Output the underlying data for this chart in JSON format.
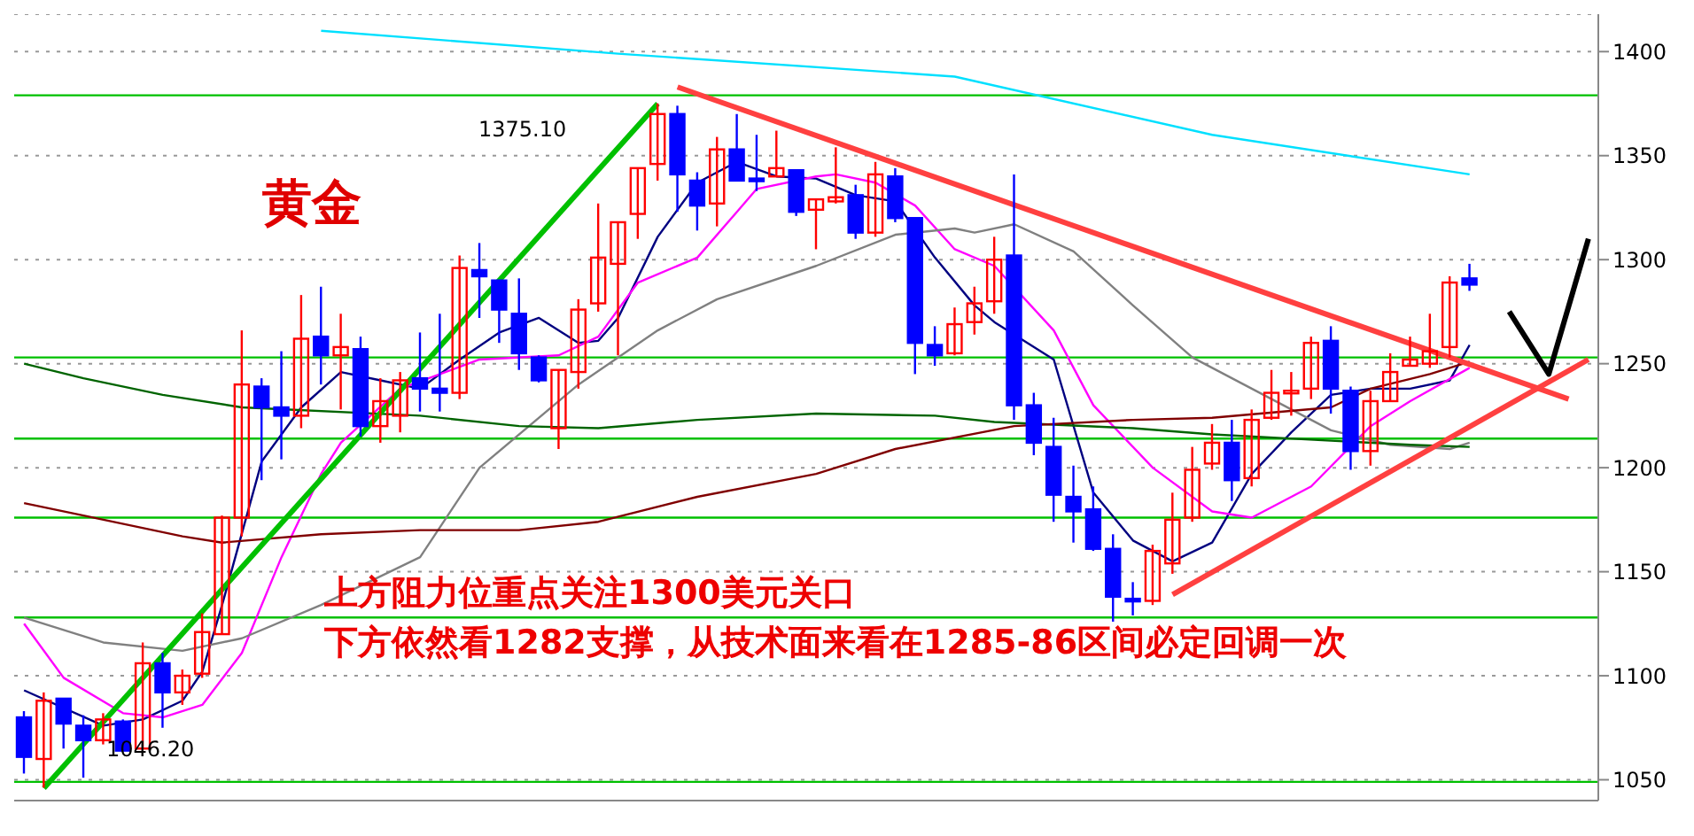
{
  "chart_data": {
    "type": "candlestick",
    "title": "黄金",
    "tick_labels": "y",
    "grid": "y",
    "marker": "none",
    "categories": [
      null,
      null,
      null,
      null,
      null,
      null,
      null,
      null,
      null,
      null,
      null,
      null,
      null,
      null,
      null,
      null,
      null,
      null,
      null,
      null,
      null,
      null,
      null,
      null,
      null,
      null,
      null,
      null,
      null,
      null,
      null,
      null,
      null,
      null,
      null,
      null,
      null,
      null,
      null,
      null,
      null,
      null,
      null,
      null,
      null,
      null,
      null,
      null,
      null,
      null,
      null,
      null,
      null,
      null,
      null,
      null,
      null,
      null,
      null,
      null,
      null,
      null,
      null,
      null,
      null,
      null,
      null,
      null,
      null,
      null,
      null,
      null,
      null,
      null,
      null,
      null,
      null,
      null,
      null,
      null
    ],
    "colors": [
      "#0000ff",
      "#ff0000",
      "#0000ff",
      "#0000ff",
      "#ff0000",
      "#0000ff",
      "#ff0000",
      "#0000ff",
      "#ff0000",
      "#ff0000",
      "#ff0000",
      "#ff0000",
      "#0000ff",
      "#0000ff",
      "#ff0000",
      "#0000ff",
      "#ff0000",
      "#0000ff",
      "#ff0000",
      "#ff0000",
      "#0000ff",
      "#0000ff",
      "#ff0000",
      "#0000ff",
      "#0000ff",
      "#0000ff",
      "#0000ff",
      "#ff0000",
      "#ff0000",
      "#ff0000",
      "#ff0000",
      "#ff0000",
      "#ff0000",
      "#0000ff",
      "#0000ff",
      "#ff0000",
      "#0000ff",
      "#0000ff",
      "#ff0000",
      "#0000ff",
      "#ff0000",
      "#ff0000",
      "#0000ff",
      "#ff0000",
      "#0000ff",
      "#0000ff",
      "#0000ff",
      "#ff0000",
      "#ff0000",
      "#ff0000",
      "#0000ff",
      "#0000ff",
      "#0000ff",
      "#0000ff",
      "#0000ff",
      "#0000ff",
      "#0000ff",
      "#ff0000",
      "#ff0000",
      "#ff0000",
      "#ff0000",
      "#0000ff",
      "#ff0000",
      "#ff0000",
      "#ff0000",
      "#ff0000",
      "#0000ff",
      "#0000ff",
      "#ff0000",
      "#ff0000",
      "#ff0000",
      "#ff0000",
      "#ff0000",
      "#0000ff",
      null,
      null,
      null,
      null,
      null,
      null
    ],
    "ohlc": [
      [
        1080,
        1083,
        1053,
        1061
      ],
      [
        1060,
        1092,
        1046.2,
        1088
      ],
      [
        1089,
        1089,
        1065,
        1077
      ],
      [
        1076,
        1081,
        1051,
        1069
      ],
      [
        1069,
        1082,
        1067,
        1079
      ],
      [
        1078,
        1079,
        1064,
        1064
      ],
      [
        1065,
        1116,
        1065,
        1106
      ],
      [
        1106,
        1111,
        1075,
        1092
      ],
      [
        1092,
        1103,
        1086,
        1100
      ],
      [
        1101,
        1130,
        1099,
        1121
      ],
      [
        1120,
        1177,
        1120,
        1176
      ],
      [
        1176,
        1266,
        1167,
        1240
      ],
      [
        1239,
        1243,
        1194,
        1229
      ],
      [
        1229,
        1256,
        1204,
        1225
      ],
      [
        1225,
        1283,
        1219,
        1262
      ],
      [
        1263,
        1287,
        1240,
        1254
      ],
      [
        1254,
        1274,
        1228,
        1258
      ],
      [
        1257,
        1263,
        1215,
        1220
      ],
      [
        1220,
        1243,
        1212,
        1232
      ],
      [
        1225,
        1246,
        1217,
        1242
      ],
      [
        1243,
        1265,
        1227,
        1238
      ],
      [
        1238,
        1274,
        1227,
        1236
      ],
      [
        1236,
        1302,
        1233,
        1296
      ],
      [
        1295,
        1308,
        1272,
        1292
      ],
      [
        1290,
        1290,
        1260,
        1276
      ],
      [
        1274,
        1291,
        1247,
        1255
      ],
      [
        1253,
        1254,
        1241,
        1242
      ],
      [
        1219,
        1247,
        1209,
        1247
      ],
      [
        1246,
        1281,
        1238,
        1276
      ],
      [
        1279,
        1327,
        1275,
        1301
      ],
      [
        1298,
        1318,
        1254,
        1318
      ],
      [
        1322,
        1344,
        1310,
        1344
      ],
      [
        1346,
        1375.1,
        1338,
        1370
      ],
      [
        1370,
        1374,
        1323,
        1341
      ],
      [
        1338,
        1342,
        1314,
        1326
      ],
      [
        1327,
        1359,
        1316,
        1353
      ],
      [
        1353,
        1370,
        1338,
        1338
      ],
      [
        1339,
        1360,
        1333,
        1338
      ],
      [
        1340,
        1362,
        1340,
        1344
      ],
      [
        1343,
        1343,
        1321,
        1323
      ],
      [
        1324,
        1329,
        1305,
        1329
      ],
      [
        1328,
        1354,
        1327,
        1330
      ],
      [
        1331,
        1336,
        1310,
        1313
      ],
      [
        1313,
        1347,
        1311,
        1341
      ],
      [
        1340,
        1344,
        1318,
        1320
      ],
      [
        1320,
        1320,
        1245,
        1260
      ],
      [
        1259,
        1268,
        1249,
        1254
      ],
      [
        1255,
        1277,
        1254,
        1269
      ],
      [
        1270,
        1287,
        1264,
        1279
      ],
      [
        1280,
        1311,
        1274,
        1300
      ],
      [
        1302,
        1341,
        1223,
        1230
      ],
      [
        1230,
        1236,
        1206,
        1212
      ],
      [
        1210,
        1224,
        1174,
        1187
      ],
      [
        1186,
        1201,
        1164,
        1179
      ],
      [
        1180,
        1191,
        1160,
        1161
      ],
      [
        1161,
        1168,
        1126,
        1138
      ],
      [
        1137,
        1145,
        1129,
        1136
      ],
      [
        1136,
        1163,
        1134,
        1160
      ],
      [
        1154,
        1188,
        1149,
        1175
      ],
      [
        1176,
        1210,
        1174,
        1199
      ],
      [
        1202,
        1221,
        1199,
        1212
      ],
      [
        1212,
        1223,
        1184,
        1194
      ],
      [
        1195,
        1228,
        1191,
        1223
      ],
      [
        1224,
        1247,
        1223,
        1236
      ],
      [
        1236,
        1246,
        1225,
        1237
      ],
      [
        1238,
        1263,
        1233,
        1260
      ],
      [
        1261,
        1268,
        1226,
        1238
      ],
      [
        1237,
        1239,
        1199,
        1208
      ],
      [
        1208,
        1237,
        1201,
        1232
      ],
      [
        1232,
        1255,
        1232,
        1246
      ],
      [
        1249,
        1263,
        1249,
        1252
      ],
      [
        1250,
        1274,
        1248,
        1256
      ],
      [
        1258,
        1292,
        1253,
        1289
      ],
      [
        1291,
        1298,
        1285,
        1288
      ],
      null,
      null,
      null,
      null,
      null,
      null
    ],
    "series": [
      {
        "type": "line",
        "color": "#000080",
        "values": [
          1093,
          null,
          null,
          null,
          1076,
          null,
          1079,
          null,
          1088,
          1102,
          1134,
          null,
          1203,
          null,
          1229,
          null,
          1246,
          null,
          1242,
          null,
          1238,
          null,
          1252,
          null,
          1265,
          null,
          1272,
          null,
          1260,
          1261,
          1272,
          null,
          1311,
          null,
          1337,
          null,
          1347,
          null,
          1340,
          null,
          1339,
          null,
          1331,
          null,
          1328,
          null,
          1301,
          null,
          1278,
          1270,
          null,
          null,
          1252,
          null,
          1188,
          null,
          1165,
          null,
          1155,
          null,
          1164,
          null,
          1197,
          null,
          1217,
          null,
          1235,
          null,
          1238,
          null,
          1238,
          null,
          1242,
          1259,
          null,
          null,
          null,
          null,
          null,
          null
        ]
      },
      {
        "type": "line",
        "color": "#ff00ff",
        "values": [
          1125,
          null,
          1099,
          null,
          null,
          1082,
          null,
          1080,
          null,
          1086,
          null,
          1111,
          null,
          1157,
          null,
          1197,
          1212,
          null,
          null,
          1238,
          null,
          null,
          null,
          1252,
          null,
          null,
          null,
          1254,
          null,
          1263,
          null,
          1289,
          null,
          null,
          1301,
          null,
          1323,
          1334,
          null,
          null,
          1340,
          1341,
          null,
          1337,
          null,
          1326,
          null,
          1305,
          null,
          1297,
          null,
          null,
          1266,
          null,
          1230,
          null,
          null,
          1200,
          null,
          null,
          1179,
          null,
          1176,
          null,
          null,
          1191,
          null,
          null,
          1220,
          null,
          1232,
          null,
          null,
          1248,
          null,
          null,
          null,
          null,
          null,
          null
        ]
      },
      {
        "type": "line",
        "color": "#808080",
        "values": [
          1128,
          null,
          null,
          null,
          1116,
          null,
          null,
          null,
          1112,
          null,
          null,
          1118,
          null,
          null,
          null,
          1134,
          null,
          null,
          null,
          null,
          1157,
          null,
          null,
          1200,
          null,
          null,
          null,
          null,
          1240,
          null,
          null,
          null,
          1266,
          null,
          null,
          1281,
          null,
          null,
          null,
          null,
          1297,
          null,
          null,
          null,
          1312,
          null,
          null,
          1315,
          1313,
          null,
          1317,
          null,
          null,
          1304,
          null,
          null,
          1278,
          null,
          null,
          1253,
          null,
          null,
          null,
          null,
          null,
          1223,
          1218,
          null,
          null,
          1211,
          null,
          null,
          1209,
          1212,
          null,
          null,
          null,
          null,
          null,
          null
        ]
      },
      {
        "type": "line",
        "color": "#006400",
        "values": [
          1250,
          null,
          null,
          1243,
          null,
          null,
          null,
          1235,
          null,
          null,
          null,
          1229,
          null,
          null,
          null,
          null,
          null,
          null,
          null,
          null,
          1225,
          null,
          null,
          null,
          null,
          1220,
          null,
          null,
          null,
          1219,
          null,
          null,
          null,
          null,
          1223,
          null,
          null,
          null,
          null,
          null,
          1226,
          null,
          null,
          null,
          null,
          null,
          1225,
          null,
          null,
          1222,
          null,
          null,
          null,
          null,
          null,
          null,
          1219,
          null,
          null,
          null,
          1216,
          null,
          null,
          null,
          null,
          null,
          1213,
          null,
          null,
          null,
          1211,
          null,
          null,
          1210,
          null,
          null,
          null,
          null,
          null,
          null
        ]
      },
      {
        "type": "line",
        "color": "#800000",
        "values": [
          1183,
          null,
          null,
          1177,
          null,
          null,
          null,
          null,
          1167,
          null,
          1164,
          null,
          null,
          null,
          null,
          1168,
          null,
          null,
          null,
          null,
          1170,
          null,
          null,
          null,
          null,
          1170,
          null,
          null,
          null,
          1174,
          null,
          null,
          null,
          null,
          1186,
          null,
          null,
          null,
          null,
          null,
          1197,
          null,
          null,
          null,
          1209,
          null,
          null,
          null,
          null,
          null,
          1220,
          null,
          null,
          null,
          null,
          null,
          1223,
          null,
          null,
          null,
          1224,
          null,
          null,
          null,
          null,
          null,
          1229,
          null,
          1238,
          null,
          null,
          1245,
          null,
          1251,
          null,
          null,
          null,
          null,
          null,
          null
        ]
      },
      {
        "type": "line",
        "color": "#00e0ff",
        "values": [
          null,
          null,
          null,
          null,
          null,
          null,
          null,
          null,
          null,
          null,
          null,
          null,
          null,
          null,
          null,
          1410,
          null,
          null,
          null,
          null,
          null,
          null,
          null,
          null,
          null,
          null,
          null,
          null,
          null,
          null,
          1399,
          null,
          null,
          null,
          null,
          null,
          null,
          null,
          null,
          null,
          null,
          null,
          null,
          null,
          null,
          null,
          null,
          1388,
          null,
          null,
          null,
          null,
          null,
          null,
          null,
          null,
          null,
          null,
          null,
          null,
          1360,
          null,
          null,
          null,
          null,
          null,
          null,
          null,
          null,
          null,
          null,
          null,
          null,
          1341,
          null,
          null,
          null,
          null,
          null,
          null
        ]
      },
      {
        "type": "line",
        "color": "#00c000",
        "values": [
          null,
          1046,
          null,
          null,
          null,
          null,
          null,
          null,
          null,
          null,
          null,
          null,
          null,
          null,
          null,
          null,
          null,
          null,
          null,
          null,
          null,
          null,
          null,
          null,
          null,
          null,
          null,
          null,
          null,
          null,
          null,
          null,
          1375,
          null,
          null,
          null,
          null,
          null,
          null,
          null,
          null,
          null,
          null,
          null,
          null,
          null,
          null,
          null,
          null,
          null,
          null,
          null,
          null,
          null,
          null,
          null,
          null,
          null,
          null,
          null,
          null,
          null,
          null,
          null,
          null,
          null,
          null,
          null,
          null,
          null,
          null,
          null,
          null,
          null,
          null,
          null,
          null,
          null,
          null,
          null
        ]
      },
      {
        "type": "line",
        "color": "#ff4040",
        "values": [
          null,
          null,
          null,
          null,
          null,
          null,
          null,
          null,
          null,
          null,
          null,
          null,
          null,
          null,
          null,
          null,
          null,
          null,
          null,
          null,
          null,
          null,
          null,
          null,
          null,
          null,
          null,
          null,
          null,
          null,
          null,
          null,
          null,
          1383,
          null,
          null,
          null,
          null,
          null,
          null,
          null,
          null,
          null,
          null,
          null,
          null,
          null,
          null,
          null,
          null,
          null,
          null,
          null,
          null,
          null,
          null,
          null,
          null,
          null,
          null,
          null,
          null,
          null,
          null,
          null,
          null,
          null,
          null,
          null,
          null,
          null,
          null,
          null,
          null,
          null,
          null,
          null,
          null,
          1233,
          null
        ]
      },
      {
        "type": "line",
        "color": "#ff4040",
        "values": [
          null,
          null,
          null,
          null,
          null,
          null,
          null,
          null,
          null,
          null,
          null,
          null,
          null,
          null,
          null,
          null,
          null,
          null,
          null,
          null,
          null,
          null,
          null,
          null,
          null,
          null,
          null,
          null,
          null,
          null,
          null,
          null,
          null,
          null,
          null,
          null,
          null,
          null,
          null,
          null,
          null,
          null,
          null,
          null,
          null,
          null,
          null,
          null,
          null,
          null,
          null,
          null,
          null,
          null,
          null,
          null,
          null,
          null,
          1139,
          null,
          null,
          null,
          null,
          null,
          null,
          null,
          null,
          null,
          null,
          null,
          null,
          null,
          null,
          null,
          null,
          null,
          null,
          null,
          null,
          1252
        ]
      },
      {
        "type": "line",
        "color": "#000000",
        "values": [
          null,
          null,
          null,
          null,
          null,
          null,
          null,
          null,
          null,
          null,
          null,
          null,
          null,
          null,
          null,
          null,
          null,
          null,
          null,
          null,
          null,
          null,
          null,
          null,
          null,
          null,
          null,
          null,
          null,
          null,
          null,
          null,
          null,
          null,
          null,
          null,
          null,
          null,
          null,
          null,
          null,
          null,
          null,
          null,
          null,
          null,
          null,
          null,
          null,
          null,
          null,
          null,
          null,
          null,
          null,
          null,
          null,
          null,
          null,
          null,
          null,
          null,
          null,
          null,
          null,
          null,
          null,
          null,
          null,
          null,
          null,
          null,
          null,
          null,
          null,
          1275,
          null,
          1245,
          null,
          1310
        ]
      }
    ],
    "ylim": [
      1040,
      1418
    ],
    "yticks": [
      1050,
      1100,
      1150,
      1200,
      1250,
      1300,
      1350,
      1400
    ],
    "ref_lines": [
      {
        "axis": "y",
        "value": 1379,
        "color": "#00c000"
      },
      {
        "axis": "y",
        "value": 1253,
        "color": "#00c000"
      },
      {
        "axis": "y",
        "value": 1214,
        "color": "#00c000"
      },
      {
        "axis": "y",
        "value": 1176,
        "color": "#00c000"
      },
      {
        "axis": "y",
        "value": 1128,
        "color": "#00c000"
      },
      {
        "axis": "y",
        "value": 1049,
        "color": "#00c000"
      }
    ],
    "annotations": [
      "1375.10",
      "1046.20",
      "上方阻力位重点关注1300美元关口",
      "下方依然看1282支撑，从技术面来看在1285-86区间必定回调一次"
    ]
  }
}
